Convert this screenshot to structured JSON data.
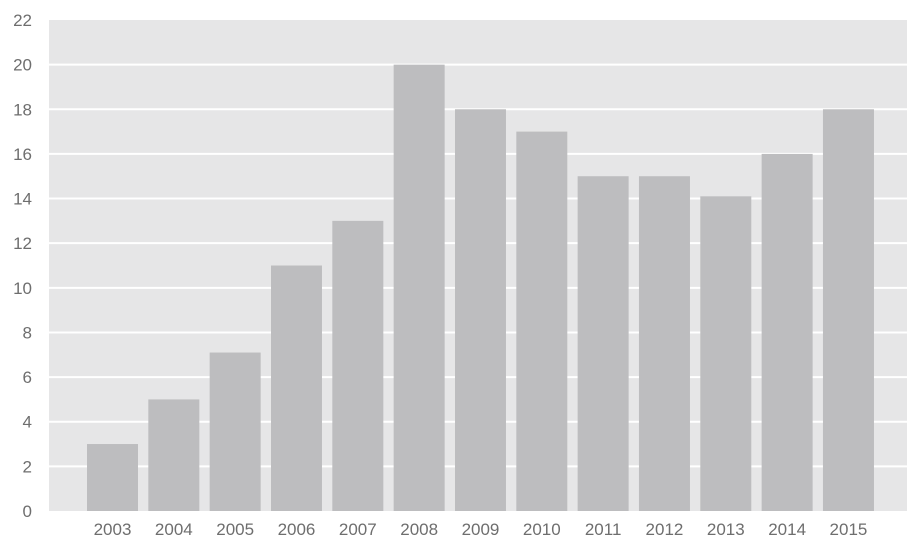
{
  "chart_data": {
    "type": "bar",
    "title": "",
    "xlabel": "",
    "ylabel": "",
    "categories": [
      "2003",
      "2004",
      "2005",
      "2006",
      "2007",
      "2008",
      "2009",
      "2010",
      "2011",
      "2012",
      "2013",
      "2014",
      "2015"
    ],
    "values": [
      3,
      5,
      7.1,
      11,
      13,
      20,
      18,
      17,
      15,
      15,
      14.1,
      16,
      18
    ],
    "ylim": [
      0,
      22
    ],
    "yticks": [
      0,
      2,
      4,
      6,
      8,
      10,
      12,
      14,
      16,
      18,
      20,
      22
    ],
    "ytick_labels": [
      "0",
      "2",
      "4",
      "6",
      "8",
      "10",
      "12",
      "14",
      "16",
      "18",
      "20",
      "22"
    ],
    "grid": true,
    "legend": "none",
    "colors": {
      "plot_background": "#e6e6e7",
      "bar": "#bdbdbf",
      "gridline": "#ffffff",
      "tick_text": "#6e6e6e"
    }
  }
}
